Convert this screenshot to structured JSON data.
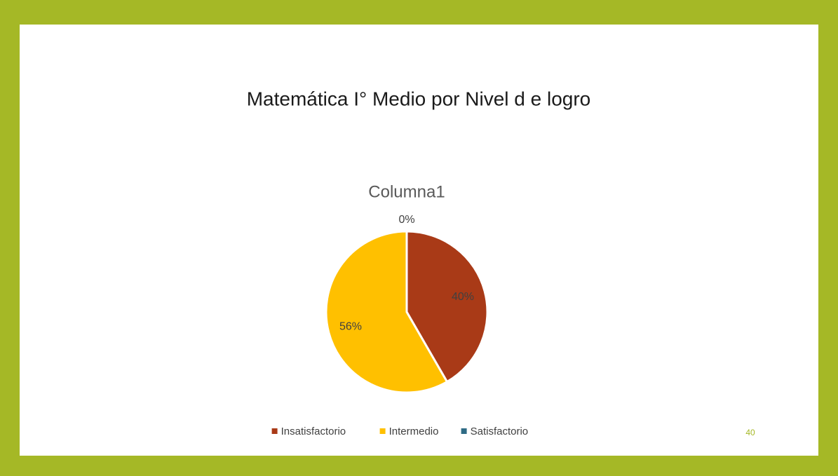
{
  "slide": {
    "title": "Matemática I° Medio por Nivel d e logro",
    "page_number": "40"
  },
  "chart_data": {
    "type": "pie",
    "title": "Columna1",
    "categories": [
      "Insatisfactorio",
      "Intermedio",
      "Satisfactorio"
    ],
    "values": [
      40,
      56,
      0
    ],
    "value_labels": [
      "40%",
      "56%",
      "0%"
    ],
    "colors": [
      "#a93a17",
      "#ffc000",
      "#2f6b85"
    ],
    "legend": "bottom"
  }
}
